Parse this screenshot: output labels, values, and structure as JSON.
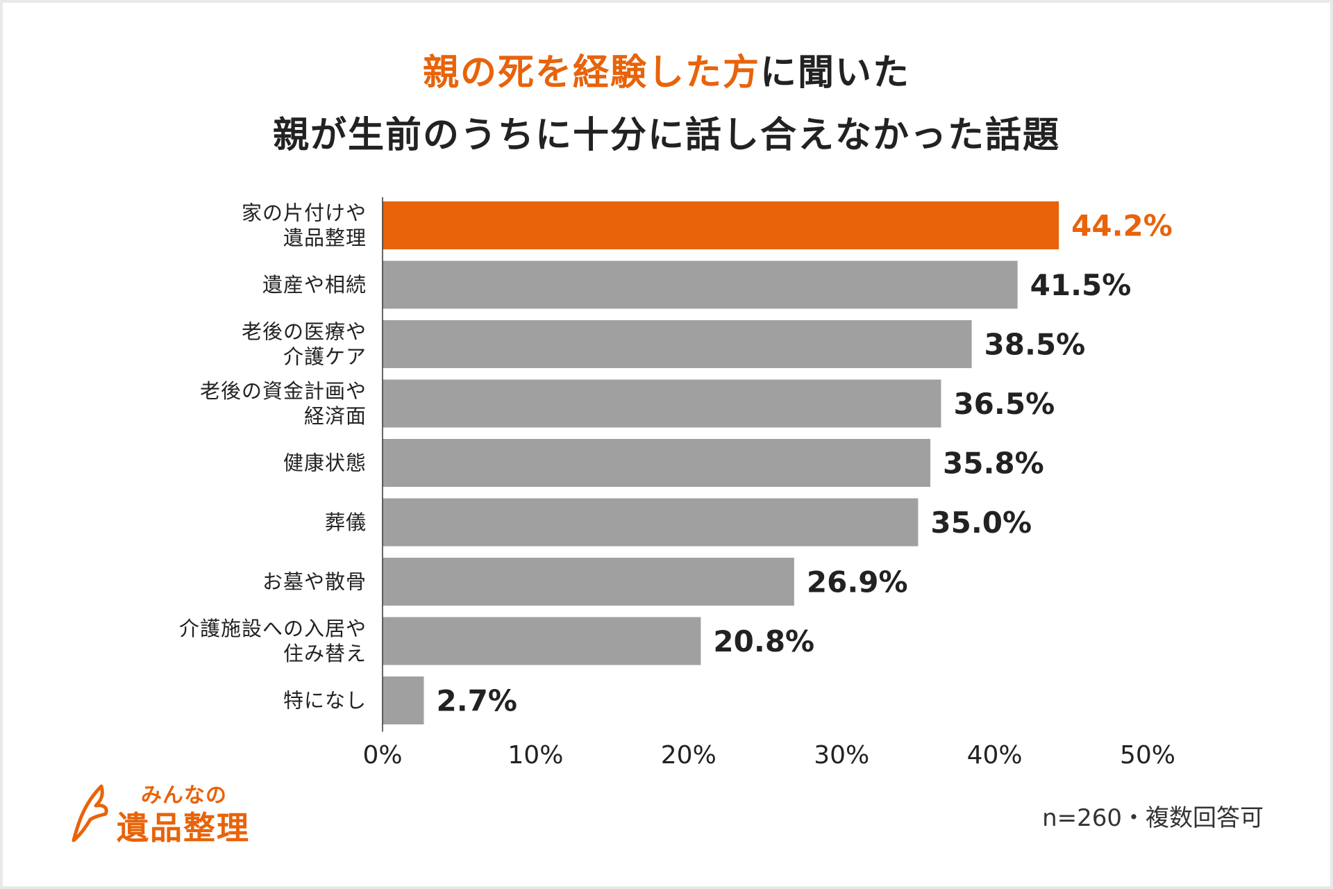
{
  "title": {
    "line1_accent": "親の死を経験した方",
    "line1_rest": "に聞いた",
    "line2": "親が生前のうちに十分に話し合えなかった話題"
  },
  "colors": {
    "accent": "#e8630a",
    "bar": "#a0a0a0",
    "text": "#222222"
  },
  "footnote": "n=260・複数回答可",
  "logo": {
    "small": "みんなの",
    "big": "遺品整理"
  },
  "chart_data": {
    "type": "bar",
    "orientation": "horizontal",
    "title": "親の死を経験した方に聞いた 親が生前のうちに十分に話し合えなかった話題",
    "categories": [
      [
        "家の片付けや",
        "遺品整理"
      ],
      [
        "遺産や相続"
      ],
      [
        "老後の医療や",
        "介護ケア"
      ],
      [
        "老後の資金計画や",
        "経済面"
      ],
      [
        "健康状態"
      ],
      [
        "葬儀"
      ],
      [
        "お墓や散骨"
      ],
      [
        "介護施設への入居や",
        "住み替え"
      ],
      [
        "特になし"
      ]
    ],
    "values": [
      44.2,
      41.5,
      38.5,
      36.5,
      35.8,
      35.0,
      26.9,
      20.8,
      2.7
    ],
    "value_labels": [
      "44.2%",
      "41.5%",
      "38.5%",
      "36.5%",
      "35.8%",
      "35.0%",
      "26.9%",
      "20.8%",
      "2.7%"
    ],
    "highlight_index": 0,
    "xlim": [
      0,
      50
    ],
    "xticks": [
      "0%",
      "10%",
      "20%",
      "30%",
      "40%",
      "50%"
    ],
    "grid": false,
    "legend": "none"
  }
}
